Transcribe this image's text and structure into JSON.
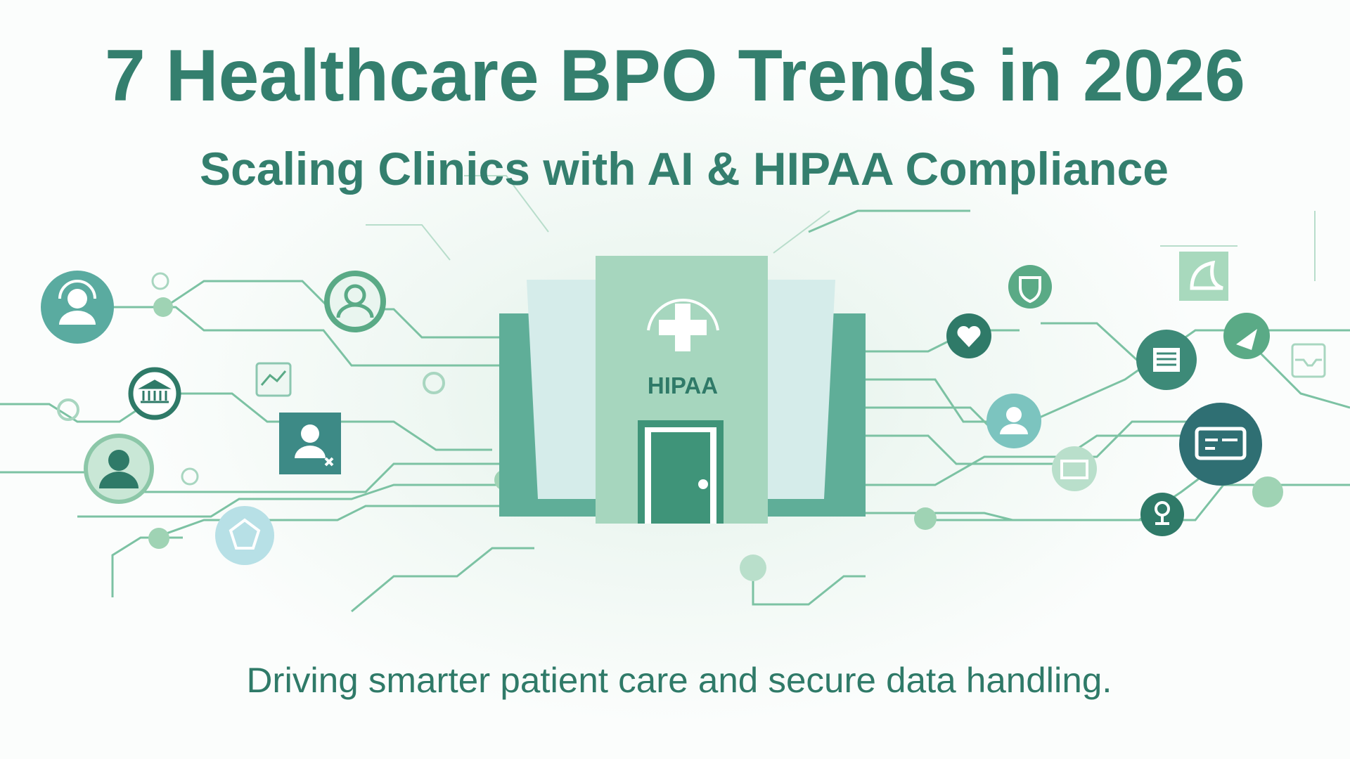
{
  "banner": {
    "title": "7 Healthcare BPO Trends in 2026",
    "subtitle": "Scaling Clinics with AI & HIPAA Compliance",
    "tagline": "Driving smarter patient care and secure data handling.",
    "building_label": "HIPAA"
  },
  "colors": {
    "title": "#347f6e",
    "building_main": "#a6d6be",
    "building_side": "#5fae98",
    "door": "#3f9479",
    "panel": "#d5ecea",
    "circuit": "#7cc2a3",
    "icon_dark": "#2f7a68",
    "icon_teal": "#5aaba0"
  },
  "icons": {
    "left": [
      "support-agent-icon",
      "user-outline-icon",
      "bank-icon",
      "user-profile-icon",
      "user-remove-icon",
      "network-icon",
      "analytics-chart-icon"
    ],
    "right": [
      "shield-icon",
      "heart-icon",
      "document-icon",
      "send-icon",
      "user-icon",
      "chat-icon",
      "location-pin-icon",
      "monitor-icon",
      "puzzle-icon",
      "inbox-icon"
    ]
  }
}
